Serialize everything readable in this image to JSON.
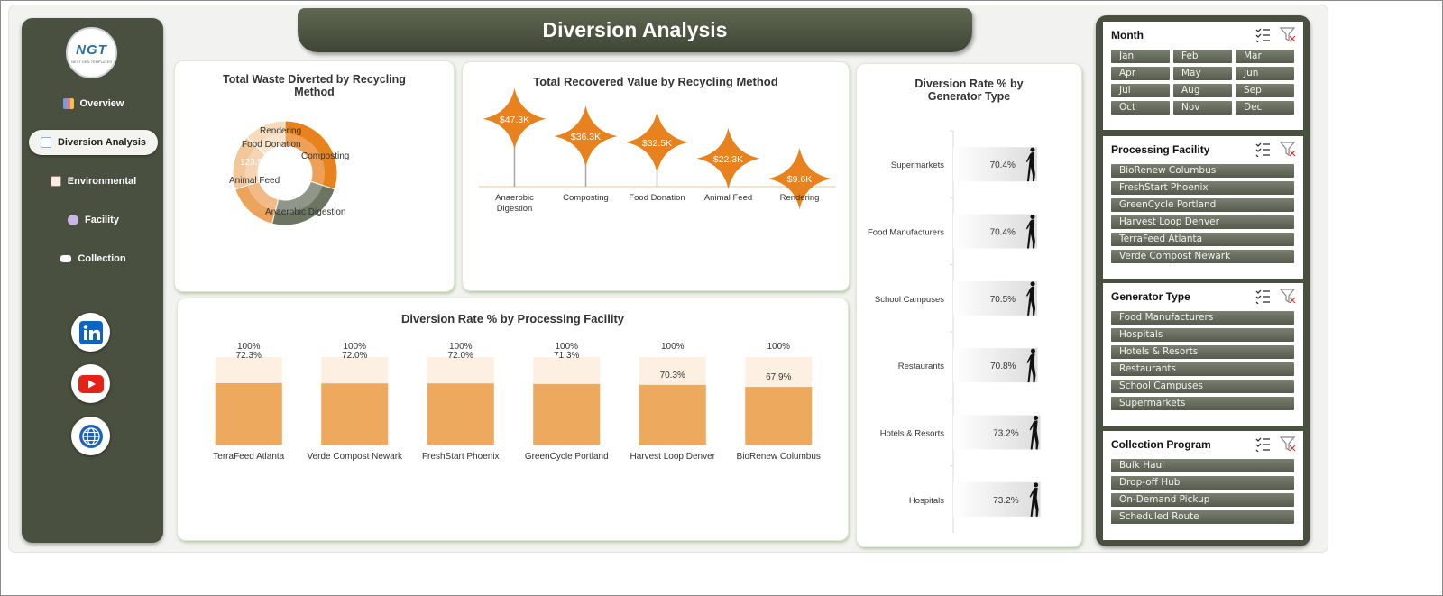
{
  "title": "Diversion Analysis",
  "logo": {
    "text": "NGT",
    "subtext": "NEXT GEN TEMPLATES"
  },
  "nav": [
    {
      "label": "Overview",
      "icon": "bar-chart-icon",
      "active": false
    },
    {
      "label": "Diversion Analysis",
      "icon": "line-chart-icon",
      "active": true
    },
    {
      "label": "Environmental",
      "icon": "clipboard-icon",
      "active": false
    },
    {
      "label": "Facility",
      "icon": "gear-icon",
      "active": false
    },
    {
      "label": "Collection",
      "icon": "folder-icon",
      "active": false
    }
  ],
  "social": [
    "linkedin-icon",
    "youtube-icon",
    "globe-icon"
  ],
  "colors": {
    "dark_olive": "#4a5040",
    "orange": "#e8821e",
    "bar_fill": "#eda95e",
    "bar_bg": "#fdf0e2"
  },
  "charts": {
    "donut": {
      "title": "Total Waste Diverted by Recycling Method",
      "labels": [
        "Rendering",
        "Food Donation",
        "123.5K",
        "Composting",
        "Animal Feed",
        "Anaerobic Digestion"
      ]
    },
    "value_chart": {
      "title": "Total Recovered Value by Recycling Method"
    },
    "facility_chart": {
      "title": "Diversion Rate % by Processing Facility"
    },
    "generator_chart": {
      "title": "Diversion Rate % by Generator Type"
    }
  },
  "chart_data": [
    {
      "type": "pie",
      "title": "Total Waste Diverted by Recycling Method",
      "categories": [
        "Composting",
        "Anaerobic Digestion",
        "Animal Feed",
        "Food Donation",
        "Rendering"
      ],
      "values": [
        30,
        24,
        16,
        17,
        13
      ],
      "data_labels": [
        "123.5K"
      ]
    },
    {
      "type": "bar",
      "title": "Total Recovered Value by Recycling Method",
      "categories": [
        "Anaerobic Digestion",
        "Composting",
        "Food Donation",
        "Animal Feed",
        "Rendering"
      ],
      "values": [
        47.3,
        36.3,
        32.5,
        22.3,
        9.6
      ],
      "data_labels": [
        "$47.3K",
        "$36.3K",
        "$32.5K",
        "$22.3K",
        "$9.6K"
      ]
    },
    {
      "type": "bar",
      "title": "Diversion Rate % by Processing Facility",
      "categories": [
        "TerraFeed Atlanta",
        "Verde Compost Newark",
        "FreshStart Phoenix",
        "GreenCycle Portland",
        "Harvest Loop Denver",
        "BioRenew Columbus"
      ],
      "series": [
        {
          "values": [
            100,
            100,
            100,
            100,
            100,
            100
          ],
          "labels": [
            "100%",
            "100%",
            "100%",
            "100%",
            "100%",
            "100%"
          ]
        },
        {
          "values": [
            72.3,
            72.0,
            72.0,
            71.3,
            70.3,
            67.9
          ],
          "labels": [
            "72.3%",
            "72.0%",
            "72.0%",
            "71.3%",
            "70.3%",
            "67.9%"
          ]
        }
      ],
      "ylim": [
        0,
        100
      ]
    },
    {
      "type": "bar",
      "title": "Diversion Rate % by Generator Type",
      "categories": [
        "Supermarkets",
        "Food Manufacturers",
        "School Campuses",
        "Restaurants",
        "Hotels & Resorts",
        "Hospitals"
      ],
      "values": [
        70.4,
        70.4,
        70.5,
        70.8,
        73.2,
        73.2
      ],
      "data_labels": [
        "70.4%",
        "70.4%",
        "70.5%",
        "70.8%",
        "73.2%",
        "73.2%"
      ]
    }
  ],
  "slicers": [
    {
      "title": "Month",
      "items": [
        "Jan",
        "Feb",
        "Mar",
        "Apr",
        "May",
        "Jun",
        "Jul",
        "Aug",
        "Sep",
        "Oct",
        "Nov",
        "Dec"
      ]
    },
    {
      "title": "Processing Facility",
      "items": [
        "BioRenew Columbus",
        "FreshStart Phoenix",
        "GreenCycle Portland",
        "Harvest Loop Denver",
        "TerraFeed Atlanta",
        "Verde Compost Newark"
      ]
    },
    {
      "title": "Generator Type",
      "items": [
        "Food Manufacturers",
        "Hospitals",
        "Hotels & Resorts",
        "Restaurants",
        "School Campuses",
        "Supermarkets"
      ]
    },
    {
      "title": "Collection Program",
      "items": [
        "Bulk Haul",
        "Drop-off Hub",
        "On-Demand Pickup",
        "Scheduled Route"
      ]
    }
  ]
}
